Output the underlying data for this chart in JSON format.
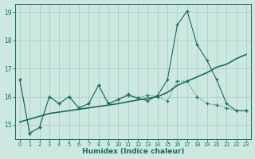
{
  "xlabel": "Humidex (Indice chaleur)",
  "bg_color": "#cce8e0",
  "grid_color": "#aacfc8",
  "line_color": "#1a6b5e",
  "xlim": [
    -0.5,
    23.5
  ],
  "ylim": [
    14.5,
    19.3
  ],
  "yticks": [
    15,
    16,
    17,
    18,
    19
  ],
  "xticks": [
    0,
    1,
    2,
    3,
    4,
    5,
    6,
    7,
    8,
    9,
    10,
    11,
    12,
    13,
    14,
    15,
    16,
    17,
    18,
    19,
    20,
    21,
    22,
    23
  ],
  "series1_x": [
    0,
    1,
    2,
    3,
    4,
    5,
    6,
    7,
    8,
    9,
    10,
    11,
    12,
    13,
    14,
    15,
    16,
    17,
    18,
    19,
    20,
    21,
    22,
    23
  ],
  "series1_y": [
    16.6,
    14.7,
    14.9,
    16.0,
    15.75,
    16.0,
    15.6,
    15.75,
    16.4,
    15.75,
    15.9,
    16.1,
    15.95,
    16.05,
    16.0,
    15.85,
    16.55,
    16.55,
    16.0,
    15.75,
    15.7,
    15.6,
    15.5,
    15.5
  ],
  "series2_x": [
    0,
    1,
    2,
    3,
    4,
    5,
    6,
    7,
    8,
    9,
    10,
    11,
    12,
    13,
    14,
    15,
    16,
    17,
    18,
    19,
    20,
    21,
    22,
    23
  ],
  "series2_y": [
    16.6,
    14.7,
    14.9,
    16.0,
    15.75,
    16.0,
    15.6,
    15.75,
    16.4,
    15.75,
    15.9,
    16.05,
    15.95,
    15.85,
    16.05,
    16.6,
    18.55,
    19.05,
    17.85,
    17.3,
    16.6,
    15.75,
    15.5,
    15.5
  ],
  "series3_x": [
    0,
    1,
    2,
    3,
    4,
    5,
    6,
    7,
    8,
    9,
    10,
    11,
    12,
    13,
    14,
    15,
    16,
    17,
    18,
    19,
    20,
    21,
    22,
    23
  ],
  "series3_y": [
    15.1,
    15.2,
    15.3,
    15.4,
    15.45,
    15.5,
    15.55,
    15.6,
    15.65,
    15.7,
    15.75,
    15.82,
    15.88,
    15.94,
    16.0,
    16.15,
    16.4,
    16.55,
    16.7,
    16.85,
    17.05,
    17.15,
    17.35,
    17.5
  ]
}
